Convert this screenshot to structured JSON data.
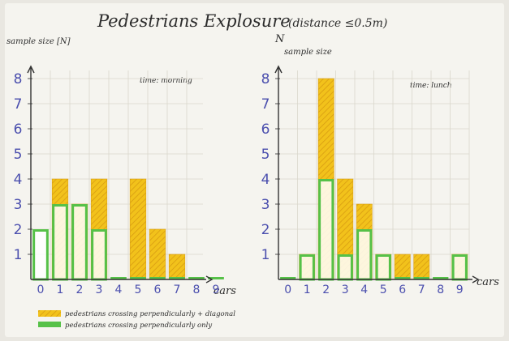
{
  "title": "Pedestrians Explosure",
  "title_note": "(distance ≤0.5m)",
  "colors": {
    "yellow": "#f2c21b",
    "yellow_hatch": "#d89c12",
    "green": "#56c148",
    "ink_blue": "#4b4fae",
    "ink": "#2c2c2c",
    "paper": "#f5f4ef"
  },
  "legend": [
    {
      "label": "pedestrians crossing perpendicularly + diagonal",
      "color": "#f2c21b"
    },
    {
      "label": "pedestrians crossing perpendicularly only",
      "color": "#56c148"
    }
  ],
  "chart_data": [
    {
      "type": "bar",
      "title": "",
      "annotation": "time: morning",
      "ylabel": "sample size [N]",
      "xlabel": "cars",
      "categories": [
        "0",
        "1",
        "2",
        "3",
        "4",
        "5",
        "6",
        "7",
        "8",
        "9"
      ],
      "ylim": [
        0,
        8
      ],
      "yticks": [
        "1",
        "2",
        "3",
        "4",
        "5",
        "6",
        "7",
        "8"
      ],
      "grid": true,
      "series": [
        {
          "name": "pedestrians crossing perpendicularly + diagonal",
          "values": [
            0,
            4,
            3,
            4,
            0,
            4,
            2,
            1,
            0,
            0
          ]
        },
        {
          "name": "pedestrians crossing perpendicularly only",
          "values": [
            2,
            3,
            3,
            2,
            0,
            0,
            0,
            0,
            0,
            0
          ]
        }
      ]
    },
    {
      "type": "bar",
      "title": "",
      "annotation": "time: lunch",
      "axis_mark": "N",
      "ylabel": "sample size",
      "xlabel": "cars",
      "categories": [
        "0",
        "1",
        "2",
        "3",
        "4",
        "5",
        "6",
        "7",
        "8",
        "9"
      ],
      "ylim": [
        0,
        8
      ],
      "yticks": [
        "1",
        "2",
        "3",
        "4",
        "5",
        "6",
        "7",
        "8"
      ],
      "grid": true,
      "series": [
        {
          "name": "pedestrians crossing perpendicularly + diagonal",
          "values": [
            0,
            1,
            8,
            4,
            3,
            1,
            1,
            1,
            0,
            1
          ]
        },
        {
          "name": "pedestrians crossing perpendicularly only",
          "values": [
            0,
            1,
            4,
            1,
            2,
            1,
            0,
            0,
            0,
            1
          ]
        }
      ]
    }
  ]
}
